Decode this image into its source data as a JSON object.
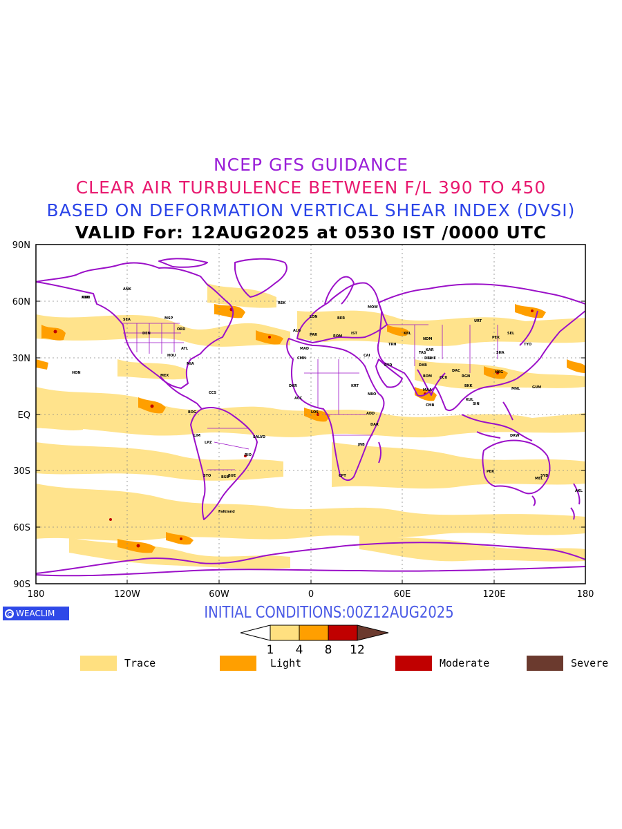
{
  "titles": {
    "line1": "NCEP GFS GUIDANCE",
    "line2": "CLEAR AIR TURBULENCE BETWEEN F/L 390 TO 450",
    "line3": "BASED ON DEFORMATION VERTICAL SHEAR INDEX (DVSI)",
    "line4": "VALID For: 12AUG2025 at 0530 IST /0000 UTC"
  },
  "colors": {
    "title1": "#9a1fd8",
    "title2": "#e8196f",
    "title3": "#2b44e8",
    "title4": "#000000",
    "coast": "#9b10c8",
    "trace": "#ffe080",
    "light": "#ff9f00",
    "moderate": "#c00000",
    "severe": "#6b3a2e"
  },
  "axes": {
    "lat_labels": [
      "90N",
      "60N",
      "30N",
      "EQ",
      "30S",
      "60S",
      "90S"
    ],
    "lon_labels": [
      "180",
      "120W",
      "60W",
      "0",
      "60E",
      "120E",
      "180"
    ]
  },
  "logo": {
    "text": "WEACLIM"
  },
  "initial_conditions": "INITIAL CONDITIONS:00Z12AUG2025",
  "colorbar": {
    "ticks": [
      "1",
      "4",
      "8",
      "12"
    ]
  },
  "legend": [
    {
      "label": "Trace",
      "color": "#ffe080"
    },
    {
      "label": "Light",
      "color": "#ff9f00"
    },
    {
      "label": "Moderate",
      "color": "#c00000"
    },
    {
      "label": "Severe",
      "color": "#6b3a2e"
    }
  ],
  "station_labels": [
    "ANC",
    "ANK",
    "SEA",
    "MSP",
    "ORD",
    "DEN",
    "ATL",
    "MIA",
    "HOU",
    "HON",
    "MEX",
    "BOG",
    "LIM",
    "LPZ",
    "STO",
    "BSB",
    "SALVD",
    "RIO",
    "CCS",
    "BUE",
    "Falkland",
    "REK",
    "LON",
    "PAR",
    "MAD",
    "ROM",
    "BER",
    "MOW",
    "IST",
    "CAI",
    "RYD",
    "DXB",
    "KRT",
    "NBO",
    "ADD",
    "DAR",
    "JNB",
    "CPT",
    "ACC",
    "LOS",
    "DKR",
    "CMN",
    "ALG",
    "TRH",
    "KBL",
    "DEL",
    "BOM",
    "CCU",
    "MAA",
    "CMB",
    "DAC",
    "RGN",
    "BKK",
    "KUL",
    "SIN",
    "HKG",
    "PEK",
    "SHA",
    "TYO",
    "SEL",
    "MNL",
    "DRW",
    "PER",
    "SYD",
    "MEL",
    "AKL",
    "GUM",
    "URT",
    "NDM",
    "TAS",
    "KAR",
    "LHE",
    "KTM"
  ]
}
